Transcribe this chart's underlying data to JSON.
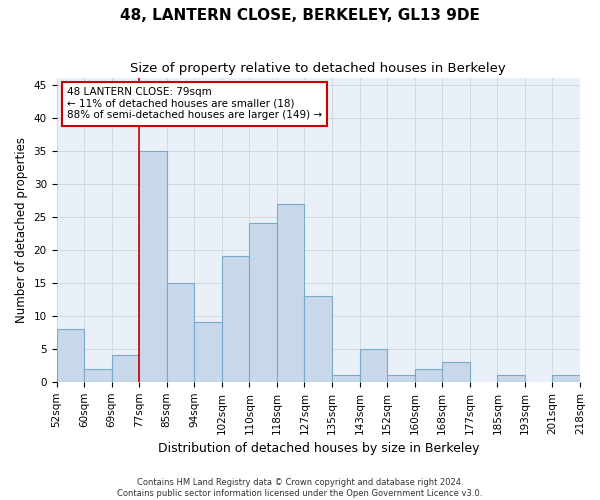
{
  "title": "48, LANTERN CLOSE, BERKELEY, GL13 9DE",
  "subtitle": "Size of property relative to detached houses in Berkeley",
  "xlabel": "Distribution of detached houses by size in Berkeley",
  "ylabel": "Number of detached properties",
  "bar_values": [
    8,
    2,
    4,
    35,
    15,
    9,
    19,
    24,
    27,
    13,
    1,
    5,
    1,
    2,
    3,
    0,
    1,
    0,
    1
  ],
  "bin_labels": [
    "52sqm",
    "60sqm",
    "69sqm",
    "77sqm",
    "85sqm",
    "94sqm",
    "102sqm",
    "110sqm",
    "118sqm",
    "127sqm",
    "135sqm",
    "143sqm",
    "152sqm",
    "160sqm",
    "168sqm",
    "177sqm",
    "185sqm",
    "193sqm",
    "201sqm",
    "218sqm"
  ],
  "bar_color": "#c8d8ea",
  "bar_edge_color": "#7aaac8",
  "bar_edge_width": 0.8,
  "vline_x": 3,
  "vline_color": "#cc0000",
  "annotation_text": "48 LANTERN CLOSE: 79sqm\n← 11% of detached houses are smaller (18)\n88% of semi-detached houses are larger (149) →",
  "annotation_box_color": "#ffffff",
  "annotation_box_edge": "#cc0000",
  "ylim": [
    0,
    46
  ],
  "yticks": [
    0,
    5,
    10,
    15,
    20,
    25,
    30,
    35,
    40,
    45
  ],
  "grid_color": "#d0d8e0",
  "bg_color": "#eaf0f8",
  "footnote": "Contains HM Land Registry data © Crown copyright and database right 2024.\nContains public sector information licensed under the Open Government Licence v3.0.",
  "title_fontsize": 11,
  "subtitle_fontsize": 9.5,
  "ylabel_fontsize": 8.5,
  "xlabel_fontsize": 9,
  "tick_fontsize": 7.5,
  "annotation_fontsize": 7.5,
  "footnote_fontsize": 6
}
